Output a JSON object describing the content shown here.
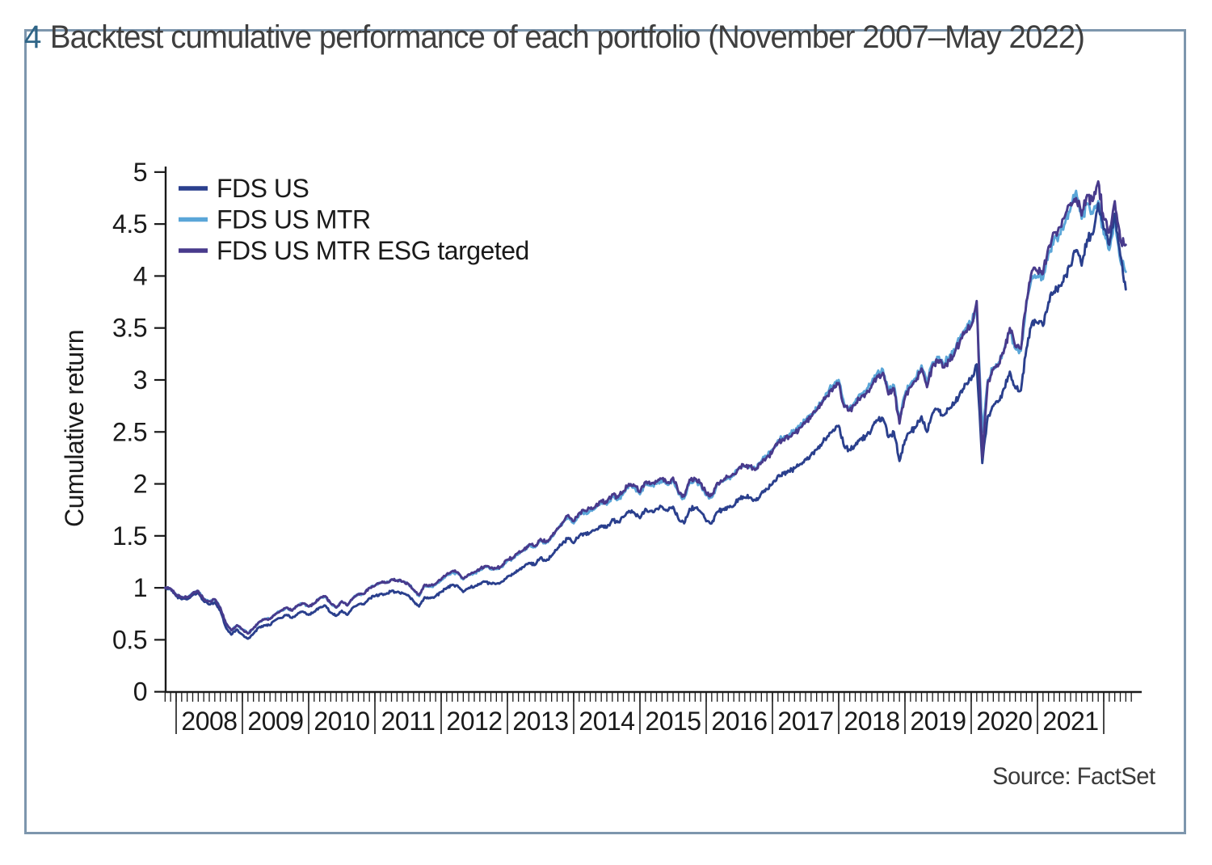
{
  "figure": {
    "number": "4",
    "title": "Backtest cumulative performance of each portfolio (November 2007–May 2022)",
    "source": "Source: FactSet"
  },
  "colors": {
    "border": "#7d96ad",
    "figure_number": "#2f6587",
    "title_text": "#3f3f3f",
    "axis": "#1a1a1a",
    "series_fds_us": "#2a3f8d",
    "series_fds_us_mtr": "#5aa6d8",
    "series_fds_us_mtr_esg": "#483a8c"
  },
  "chart_data": {
    "type": "line",
    "title": "Backtest cumulative performance of each portfolio (November 2007–May 2022)",
    "xlabel": "",
    "ylabel": "Cumulative return",
    "ylim": [
      0,
      5
    ],
    "ytick_step": 0.5,
    "ytick_labels": [
      "0",
      "0.5",
      "1",
      "1.5",
      "2",
      "2.5",
      "3",
      "3.5",
      "4",
      "4.5",
      "5"
    ],
    "x_start": "2007-11",
    "x_end": "2022-05",
    "x_interval": "monthly",
    "x_year_labels": [
      "2008",
      "2009",
      "2010",
      "2011",
      "2012",
      "2013",
      "2014",
      "2015",
      "2016",
      "2017",
      "2018",
      "2019",
      "2020",
      "2021"
    ],
    "grid": false,
    "legend_position": "top-left",
    "series": [
      {
        "name": "FDS US",
        "color": "#2a3f8d",
        "values": [
          1.0,
          0.99,
          0.92,
          0.89,
          0.89,
          0.93,
          0.95,
          0.87,
          0.84,
          0.86,
          0.78,
          0.62,
          0.55,
          0.6,
          0.55,
          0.51,
          0.56,
          0.62,
          0.64,
          0.64,
          0.69,
          0.71,
          0.74,
          0.71,
          0.75,
          0.77,
          0.74,
          0.77,
          0.81,
          0.83,
          0.76,
          0.73,
          0.78,
          0.74,
          0.81,
          0.84,
          0.84,
          0.9,
          0.92,
          0.94,
          0.94,
          0.97,
          0.96,
          0.95,
          0.93,
          0.87,
          0.82,
          0.91,
          0.9,
          0.92,
          0.96,
          1.0,
          1.03,
          1.02,
          0.96,
          1.0,
          1.01,
          1.04,
          1.06,
          1.04,
          1.04,
          1.06,
          1.11,
          1.13,
          1.17,
          1.2,
          1.24,
          1.22,
          1.29,
          1.26,
          1.31,
          1.37,
          1.43,
          1.48,
          1.43,
          1.5,
          1.52,
          1.53,
          1.56,
          1.6,
          1.58,
          1.66,
          1.63,
          1.68,
          1.74,
          1.72,
          1.67,
          1.76,
          1.74,
          1.76,
          1.78,
          1.74,
          1.78,
          1.66,
          1.62,
          1.76,
          1.77,
          1.73,
          1.64,
          1.62,
          1.73,
          1.75,
          1.78,
          1.79,
          1.86,
          1.87,
          1.87,
          1.84,
          1.91,
          1.95,
          2.0,
          2.08,
          2.1,
          2.12,
          2.15,
          2.19,
          2.24,
          2.28,
          2.33,
          2.39,
          2.46,
          2.52,
          2.56,
          2.36,
          2.33,
          2.37,
          2.43,
          2.46,
          2.53,
          2.61,
          2.63,
          2.45,
          2.5,
          2.22,
          2.42,
          2.5,
          2.55,
          2.65,
          2.5,
          2.68,
          2.72,
          2.66,
          2.72,
          2.78,
          2.88,
          2.96,
          3.0,
          3.15,
          2.2,
          2.65,
          2.75,
          2.8,
          2.92,
          3.08,
          2.92,
          2.9,
          3.3,
          3.55,
          3.55,
          3.52,
          3.75,
          3.85,
          3.9,
          4.0,
          4.1,
          4.25,
          4.1,
          4.35,
          4.4,
          4.7,
          4.45,
          4.3,
          4.6,
          4.2,
          3.87
        ]
      },
      {
        "name": "FDS US MTR",
        "color": "#5aa6d8",
        "values": [
          1.0,
          0.99,
          0.93,
          0.91,
          0.91,
          0.95,
          0.97,
          0.89,
          0.87,
          0.89,
          0.81,
          0.66,
          0.59,
          0.64,
          0.6,
          0.56,
          0.61,
          0.67,
          0.7,
          0.7,
          0.75,
          0.78,
          0.81,
          0.78,
          0.83,
          0.85,
          0.82,
          0.85,
          0.9,
          0.92,
          0.85,
          0.81,
          0.87,
          0.83,
          0.9,
          0.94,
          0.94,
          1.0,
          1.02,
          1.05,
          1.05,
          1.08,
          1.07,
          1.06,
          1.04,
          0.98,
          0.92,
          1.02,
          1.01,
          1.03,
          1.07,
          1.12,
          1.15,
          1.14,
          1.08,
          1.12,
          1.14,
          1.17,
          1.2,
          1.18,
          1.18,
          1.2,
          1.26,
          1.28,
          1.33,
          1.36,
          1.41,
          1.39,
          1.46,
          1.43,
          1.49,
          1.56,
          1.62,
          1.68,
          1.62,
          1.7,
          1.72,
          1.74,
          1.77,
          1.82,
          1.8,
          1.88,
          1.85,
          1.91,
          1.98,
          1.96,
          1.9,
          2.0,
          1.98,
          2.0,
          2.03,
          1.99,
          2.04,
          1.9,
          1.86,
          2.02,
          2.03,
          1.99,
          1.89,
          1.87,
          2.0,
          2.02,
          2.06,
          2.08,
          2.16,
          2.17,
          2.17,
          2.14,
          2.22,
          2.27,
          2.33,
          2.42,
          2.44,
          2.47,
          2.51,
          2.56,
          2.62,
          2.67,
          2.73,
          2.8,
          2.88,
          2.95,
          3.0,
          2.77,
          2.74,
          2.79,
          2.86,
          2.9,
          2.98,
          3.07,
          3.1,
          2.89,
          2.95,
          2.62,
          2.86,
          2.96,
          3.02,
          3.14,
          2.96,
          3.17,
          3.22,
          3.15,
          3.22,
          3.29,
          3.41,
          3.5,
          3.55,
          3.7,
          2.5,
          3.0,
          3.12,
          3.17,
          3.3,
          3.48,
          3.3,
          3.28,
          3.73,
          4.0,
          4.0,
          3.97,
          4.22,
          4.35,
          4.4,
          4.51,
          4.65,
          4.82,
          4.55,
          4.7,
          4.6,
          4.72,
          4.4,
          4.25,
          4.55,
          4.15,
          4.04
        ]
      },
      {
        "name": "FDS US MTR ESG targeted",
        "color": "#483a8c",
        "values": [
          1.0,
          0.99,
          0.93,
          0.91,
          0.91,
          0.95,
          0.97,
          0.89,
          0.87,
          0.89,
          0.81,
          0.66,
          0.59,
          0.64,
          0.6,
          0.56,
          0.61,
          0.67,
          0.7,
          0.7,
          0.75,
          0.78,
          0.81,
          0.78,
          0.83,
          0.85,
          0.82,
          0.85,
          0.9,
          0.92,
          0.85,
          0.81,
          0.87,
          0.83,
          0.9,
          0.94,
          0.94,
          1.0,
          1.02,
          1.05,
          1.05,
          1.08,
          1.07,
          1.06,
          1.04,
          0.98,
          0.93,
          1.03,
          1.02,
          1.04,
          1.08,
          1.13,
          1.16,
          1.15,
          1.09,
          1.13,
          1.15,
          1.18,
          1.21,
          1.19,
          1.19,
          1.21,
          1.27,
          1.29,
          1.34,
          1.37,
          1.42,
          1.4,
          1.47,
          1.44,
          1.5,
          1.57,
          1.63,
          1.7,
          1.64,
          1.72,
          1.74,
          1.76,
          1.79,
          1.84,
          1.82,
          1.9,
          1.87,
          1.93,
          2.0,
          1.98,
          1.92,
          2.02,
          2.0,
          2.02,
          2.05,
          2.01,
          2.06,
          1.92,
          1.88,
          2.04,
          2.05,
          2.01,
          1.91,
          1.89,
          2.01,
          2.03,
          2.07,
          2.09,
          2.16,
          2.17,
          2.17,
          2.14,
          2.21,
          2.26,
          2.31,
          2.4,
          2.42,
          2.45,
          2.49,
          2.54,
          2.6,
          2.65,
          2.71,
          2.78,
          2.85,
          2.92,
          2.97,
          2.74,
          2.71,
          2.76,
          2.83,
          2.87,
          2.95,
          3.04,
          3.07,
          2.86,
          2.92,
          2.58,
          2.83,
          2.93,
          2.99,
          3.11,
          2.93,
          3.14,
          3.19,
          3.12,
          3.19,
          3.26,
          3.38,
          3.47,
          3.52,
          3.76,
          2.25,
          2.98,
          3.1,
          3.15,
          3.3,
          3.5,
          3.32,
          3.3,
          3.76,
          4.05,
          4.05,
          4.02,
          4.28,
          4.42,
          4.47,
          4.58,
          4.7,
          4.75,
          4.58,
          4.78,
          4.72,
          4.91,
          4.55,
          4.42,
          4.72,
          4.35,
          4.3
        ]
      }
    ]
  }
}
